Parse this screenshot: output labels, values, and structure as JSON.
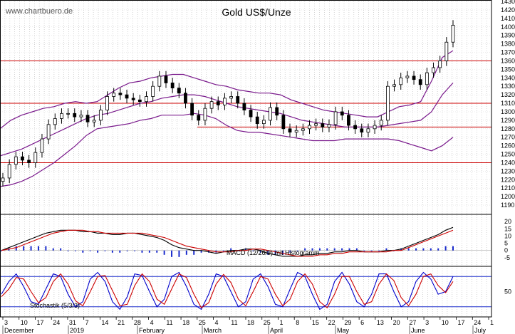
{
  "watermark": "www.chartbuero.de",
  "chart_data": [
    {
      "type": "candlestick",
      "title": "Gold US$/Unze",
      "ylim": [
        1180,
        1430
      ],
      "y_ticks": [
        1190,
        1200,
        1210,
        1220,
        1230,
        1240,
        1250,
        1260,
        1270,
        1280,
        1290,
        1300,
        1310,
        1320,
        1330,
        1340,
        1350,
        1360,
        1370,
        1380,
        1390,
        1400,
        1410,
        1420,
        1430
      ],
      "horizontal_lines_red": [
        1360,
        1310,
        1240
      ],
      "support_segment": {
        "value": 1282,
        "from": "Mar 1",
        "to": "Jun 7"
      },
      "close_path": [
        1222,
        1238,
        1247,
        1243,
        1240,
        1252,
        1268,
        1285,
        1292,
        1298,
        1298,
        1294,
        1296,
        1288,
        1290,
        1302,
        1318,
        1322,
        1320,
        1316,
        1314,
        1312,
        1318,
        1330,
        1342,
        1334,
        1328,
        1322,
        1310,
        1296,
        1290,
        1304,
        1312,
        1308,
        1316,
        1318,
        1310,
        1302,
        1294,
        1286,
        1290,
        1305,
        1296,
        1280,
        1276,
        1278,
        1280,
        1284,
        1286,
        1282,
        1285,
        1300,
        1296,
        1284,
        1280,
        1276,
        1280,
        1284,
        1290,
        1330,
        1332,
        1340,
        1342,
        1338,
        1332,
        1346,
        1352,
        1360,
        1382,
        1402
      ],
      "upper_band": [
        1280,
        1290,
        1296,
        1300,
        1304,
        1306,
        1310,
        1312,
        1310,
        1312,
        1320,
        1328,
        1334,
        1336,
        1340,
        1342,
        1344,
        1344,
        1340,
        1336,
        1332,
        1330,
        1326,
        1324,
        1322,
        1322,
        1320,
        1314,
        1310,
        1306,
        1302,
        1300,
        1298,
        1296,
        1294,
        1294,
        1300,
        1306,
        1308,
        1312,
        1336,
        1364,
        1372
      ],
      "middle_band": [
        1248,
        1252,
        1256,
        1262,
        1268,
        1274,
        1280,
        1286,
        1292,
        1296,
        1298,
        1302,
        1306,
        1310,
        1312,
        1316,
        1318,
        1320,
        1320,
        1318,
        1314,
        1310,
        1306,
        1304,
        1302,
        1300,
        1298,
        1294,
        1290,
        1288,
        1286,
        1284,
        1282,
        1282,
        1282,
        1282,
        1284,
        1286,
        1288,
        1290,
        1300,
        1320,
        1334
      ],
      "lower_band": [
        1212,
        1214,
        1218,
        1224,
        1232,
        1240,
        1250,
        1260,
        1272,
        1280,
        1282,
        1284,
        1286,
        1290,
        1292,
        1296,
        1296,
        1296,
        1298,
        1296,
        1292,
        1284,
        1278,
        1276,
        1276,
        1274,
        1272,
        1270,
        1268,
        1266,
        1266,
        1266,
        1268,
        1268,
        1268,
        1268,
        1268,
        1266,
        1262,
        1258,
        1254,
        1260,
        1270
      ]
    },
    {
      "type": "line",
      "title": "MACD (12/26/9) mit Histogramm",
      "ylim": [
        -10,
        25
      ],
      "y_ticks": [
        -5,
        0,
        5,
        10,
        15,
        20
      ],
      "series": [
        {
          "color": "#000000",
          "values": [
            0,
            2,
            4,
            6,
            8,
            10,
            12,
            13,
            14,
            14,
            14,
            13,
            13,
            12,
            12,
            11,
            11,
            12,
            12,
            11,
            10,
            9,
            7,
            4,
            2,
            1,
            0,
            0,
            -1,
            -2,
            -1,
            0,
            0,
            1,
            1,
            0,
            -2,
            -3,
            -4,
            -4,
            -4,
            -3,
            -3,
            -2,
            -2,
            -1,
            -1,
            0,
            0,
            -1,
            -1,
            -1,
            0,
            0,
            1,
            3,
            5,
            7,
            9,
            11,
            14,
            16
          ]
        },
        {
          "color": "#cc0000",
          "values": [
            0,
            1,
            2,
            4,
            6,
            8,
            10,
            12,
            13,
            14,
            14,
            14,
            13,
            13,
            12,
            12,
            12,
            12,
            12,
            12,
            11,
            10,
            9,
            7,
            5,
            3,
            2,
            1,
            0,
            -1,
            -1,
            -1,
            0,
            0,
            1,
            1,
            0,
            -1,
            -2,
            -3,
            -4,
            -4,
            -4,
            -3,
            -3,
            -2,
            -2,
            -1,
            -1,
            -1,
            -1,
            -1,
            -1,
            0,
            0,
            2,
            4,
            6,
            8,
            10,
            12,
            14
          ]
        }
      ]
    },
    {
      "type": "line",
      "title": "Stochastik (5/3/3)",
      "y_ticks": [
        50
      ],
      "reference_lines_blue": [
        80,
        20
      ],
      "series": [
        {
          "color": "#0000cc",
          "values": [
            45,
            70,
            85,
            60,
            30,
            25,
            55,
            85,
            80,
            45,
            20,
            30,
            75,
            88,
            70,
            30,
            15,
            40,
            85,
            82,
            50,
            20,
            35,
            80,
            88,
            60,
            25,
            15,
            45,
            85,
            80,
            50,
            20,
            30,
            75,
            85,
            60,
            25,
            20,
            55,
            88,
            80,
            45,
            15,
            25,
            70,
            88,
            65,
            30,
            20,
            45,
            85,
            85,
            50,
            20,
            30,
            70,
            88,
            75,
            45,
            50,
            80
          ]
        },
        {
          "color": "#cc0000",
          "values": [
            40,
            55,
            78,
            75,
            50,
            28,
            38,
            70,
            85,
            65,
            32,
            22,
            50,
            80,
            82,
            52,
            22,
            25,
            62,
            85,
            70,
            35,
            25,
            55,
            85,
            78,
            45,
            18,
            28,
            65,
            84,
            68,
            35,
            22,
            50,
            80,
            75,
            45,
            22,
            35,
            70,
            85,
            65,
            30,
            18,
            45,
            80,
            80,
            50,
            25,
            30,
            65,
            85,
            72,
            38,
            22,
            45,
            80,
            85,
            62,
            48,
            70
          ]
        }
      ]
    }
  ],
  "x_axis": {
    "day_ticks": [
      "3",
      "10",
      "17",
      "24",
      "31",
      "7",
      "14",
      "21",
      "28",
      "4",
      "11",
      "18",
      "25",
      "4",
      "11",
      "18",
      "25",
      "1",
      "8",
      "15",
      "22",
      "29",
      "6",
      "13",
      "20",
      "27",
      "3",
      "10",
      "17",
      "24",
      "1"
    ],
    "month_labels": [
      "December",
      "2019",
      "February",
      "March",
      "April",
      "May",
      "June",
      "July"
    ]
  }
}
